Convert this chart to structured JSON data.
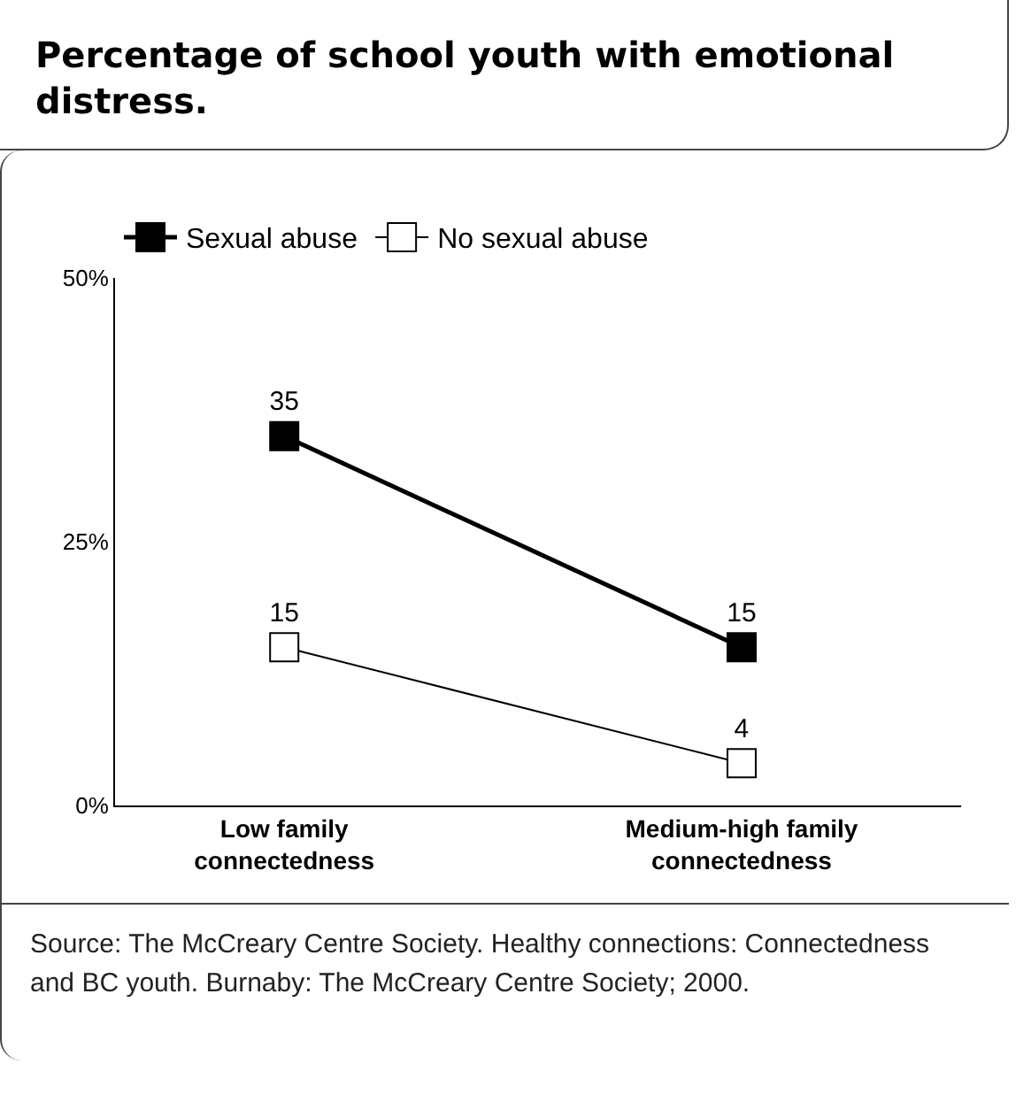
{
  "chart_data": {
    "type": "line",
    "title": "Percentage of school youth with emotional distress.",
    "categories": [
      "Low family connectedness",
      "Medium-high family connectedness"
    ],
    "series": [
      {
        "name": "Sexual abuse",
        "color": "#000000",
        "values": [
          35,
          15
        ]
      },
      {
        "name": "No sexual abuse",
        "color": "#ffffff",
        "values": [
          15,
          4
        ]
      }
    ],
    "ylim": [
      0,
      50
    ],
    "yticks": [
      {
        "value": 0,
        "label": "0%"
      },
      {
        "value": 25,
        "label": "25%"
      },
      {
        "value": 50,
        "label": "50%"
      }
    ],
    "marker": "square",
    "data_labels": true,
    "grid": false,
    "legend": "top left",
    "annotations": [
      "Source: The McCreary Centre Society. Healthy connections: Connectedness and BC youth. Burnaby: The McCreary Centre Society; 2000."
    ]
  }
}
